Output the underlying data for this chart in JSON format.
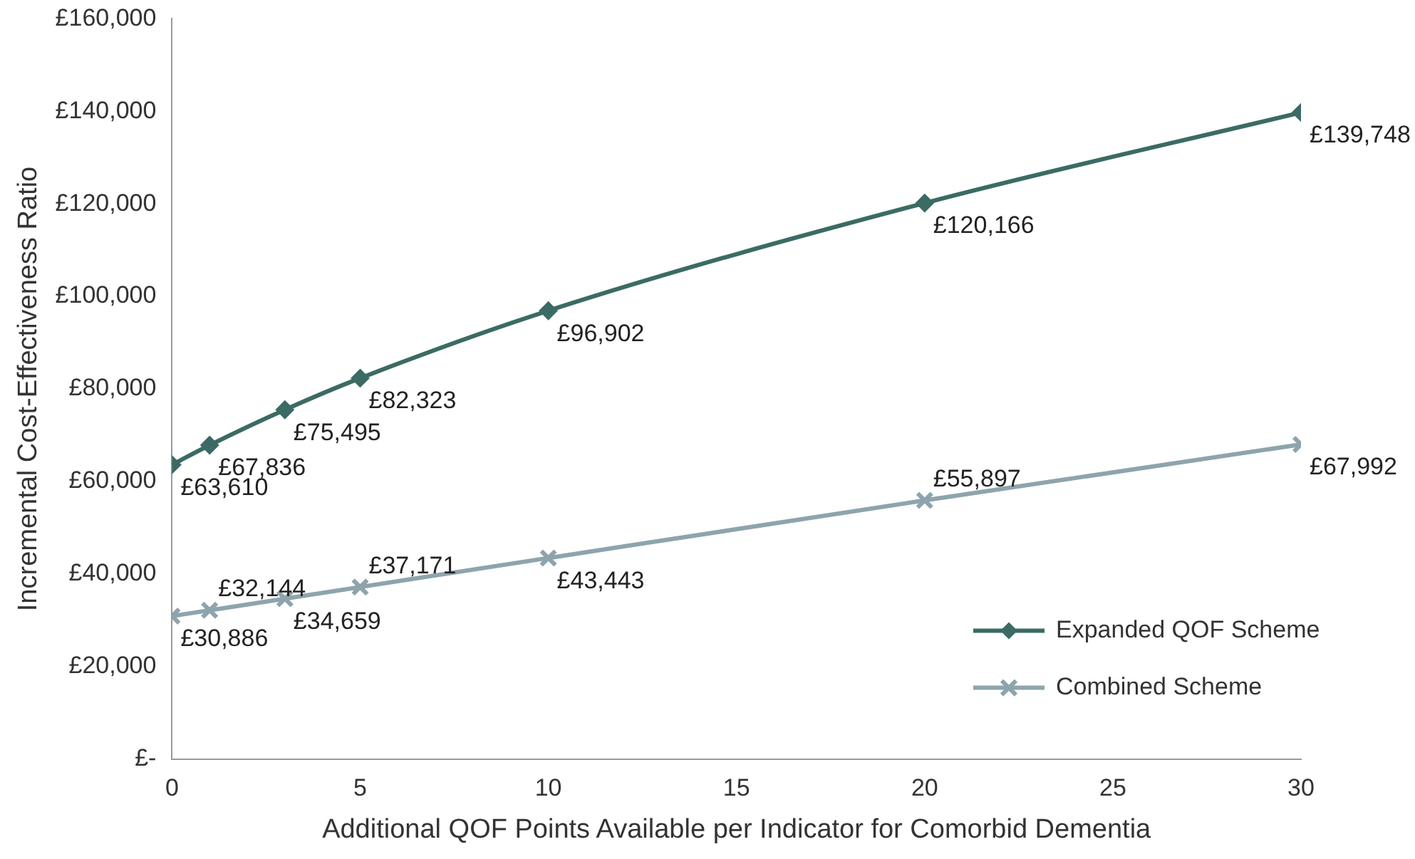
{
  "chart_data": {
    "type": "line",
    "xlabel": "Additional QOF Points Available per Indicator for Comorbid Dementia",
    "ylabel": "Incremental Cost-Effectiveness Ratio",
    "x": [
      0,
      1,
      3,
      5,
      10,
      20,
      30
    ],
    "series": [
      {
        "name": "Expanded QOF Scheme",
        "color": "#3b6b64",
        "marker": "diamond",
        "values": [
          63610,
          67836,
          75495,
          82323,
          96902,
          120166,
          139748
        ],
        "value_labels": [
          "£63,610",
          "£67,836",
          "£75,495",
          "£82,323",
          "£96,902",
          "£120,166",
          "£139,748"
        ]
      },
      {
        "name": "Combined Scheme",
        "color": "#8ea4ad",
        "marker": "cross",
        "values": [
          30886,
          32144,
          34659,
          37171,
          43443,
          55897,
          67992
        ],
        "value_labels": [
          "£30,886",
          "£32,144",
          "£34,659",
          "£37,171",
          "£43,443",
          "£55,897",
          "£67,992"
        ]
      }
    ],
    "xlim": [
      0,
      30
    ],
    "xticks": [
      0,
      5,
      10,
      15,
      20,
      25,
      30
    ],
    "ylim": [
      0,
      160000
    ],
    "yticks": [
      {
        "value": 0,
        "label": "£-"
      },
      {
        "value": 20000,
        "label": "£20,000"
      },
      {
        "value": 40000,
        "label": "£40,000"
      },
      {
        "value": 60000,
        "label": "£60,000"
      },
      {
        "value": 80000,
        "label": "£80,000"
      },
      {
        "value": 100000,
        "label": "£100,000"
      },
      {
        "value": 120000,
        "label": "£120,000"
      },
      {
        "value": 140000,
        "label": "£140,000"
      },
      {
        "value": 160000,
        "label": "£160,000"
      }
    ],
    "grid": false,
    "legend": "bottom right"
  }
}
